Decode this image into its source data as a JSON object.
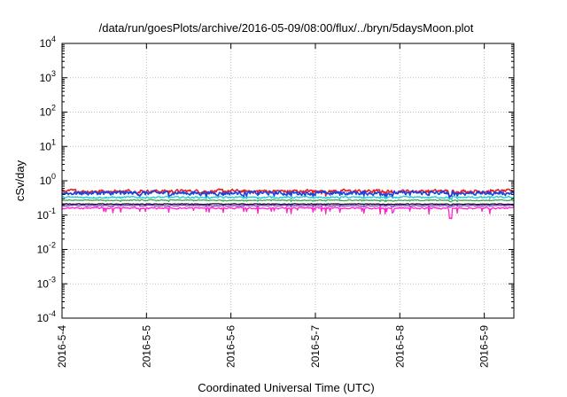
{
  "chart_data": {
    "type": "line",
    "title": "/data/run/goesPlots/archive/2016-05-09/08:00/flux/../bryn/5daysMoon.plot",
    "xlabel": "Coordinated Universal Time (UTC)",
    "ylabel": "cSv/day",
    "yscale": "log",
    "ylim": [
      0.0001,
      10000
    ],
    "xlim": [
      0,
      5.35
    ],
    "grid": true,
    "y_ticks": [
      {
        "base": "10",
        "exp": "-4",
        "value": 0.0001
      },
      {
        "base": "10",
        "exp": "-3",
        "value": 0.001
      },
      {
        "base": "10",
        "exp": "-2",
        "value": 0.01
      },
      {
        "base": "10",
        "exp": "-1",
        "value": 0.1
      },
      {
        "base": "10",
        "exp": "0",
        "value": 1
      },
      {
        "base": "10",
        "exp": "1",
        "value": 10
      },
      {
        "base": "10",
        "exp": "2",
        "value": 100
      },
      {
        "base": "10",
        "exp": "3",
        "value": 1000
      },
      {
        "base": "10",
        "exp": "4",
        "value": 10000
      }
    ],
    "x_ticks": [
      {
        "label": "2016-5-4",
        "day": 0
      },
      {
        "label": "2016-5-5",
        "day": 1
      },
      {
        "label": "2016-5-6",
        "day": 2
      },
      {
        "label": "2016-5-7",
        "day": 3
      },
      {
        "label": "2016-5-8",
        "day": 4
      },
      {
        "label": "2016-5-9",
        "day": 5
      }
    ],
    "series": [
      {
        "color": "#e8202a",
        "base": 0.5,
        "amp": 0.1,
        "dip": 0.35
      },
      {
        "color": "#1a44e0",
        "base": 0.44,
        "amp": 0.12,
        "dip": 0.3
      },
      {
        "color": "#21c7d2",
        "base": 0.33,
        "amp": 0.05,
        "dip": 0.15
      },
      {
        "color": "#3aa84a",
        "base": 0.27,
        "amp": 0.03,
        "dip": 0.1
      },
      {
        "color": "#111111",
        "base": 0.21,
        "amp": 0.02,
        "dip": 0.08
      },
      {
        "color": "#8a2be2",
        "base": 0.19,
        "amp": 0.03,
        "dip": 0.1
      },
      {
        "color": "#ff22cc",
        "base": 0.16,
        "amp": 0.05,
        "dip": 0.55
      }
    ]
  }
}
